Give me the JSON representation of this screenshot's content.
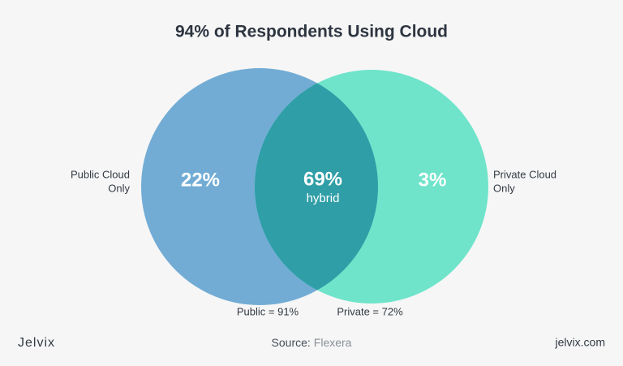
{
  "title": "94% of Respondents Using Cloud",
  "regions": {
    "left_only": {
      "value": "22%"
    },
    "overlap": {
      "value": "69%",
      "label": "hybrid"
    },
    "right_only": {
      "value": "3%"
    }
  },
  "sets": [
    {
      "side_label": [
        "Public Cloud",
        "Only"
      ],
      "total": "Public = 91%"
    },
    {
      "side_label": [
        "Private Cloud",
        "Only"
      ],
      "total": "Private = 72%"
    }
  ],
  "footer": {
    "brand": "Jelvix",
    "source_prefix": "Source:",
    "source": "Flexera",
    "site": "jelvix.com"
  }
}
